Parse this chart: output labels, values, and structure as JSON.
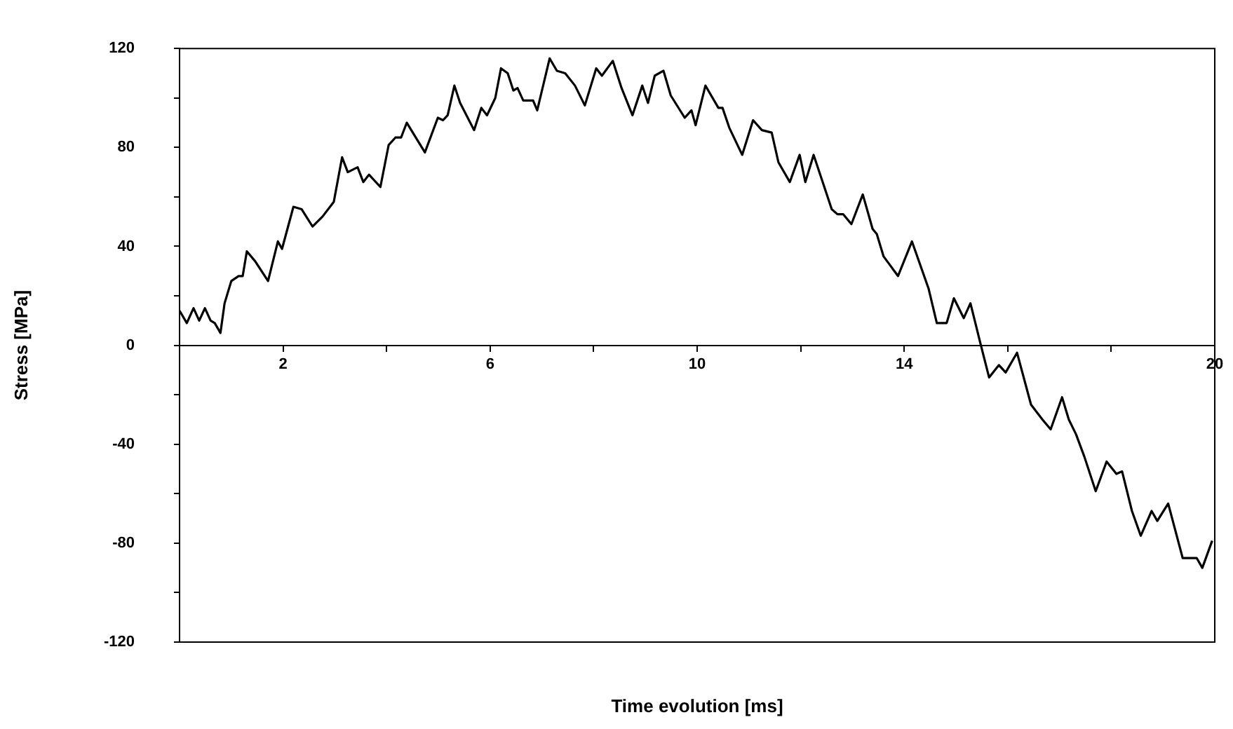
{
  "chart_data": {
    "type": "line",
    "xlabel": "Time evolution [ms]",
    "ylabel": "Stress [MPa]",
    "xlim": [
      0,
      20
    ],
    "ylim": [
      -120,
      120
    ],
    "xticks": [
      {
        "value": 0,
        "label": null
      },
      2,
      {
        "value": 4,
        "label": null
      },
      6,
      {
        "value": 8,
        "label": null
      },
      10,
      {
        "value": 12,
        "label": null
      },
      14,
      {
        "value": 16,
        "label": null
      },
      {
        "value": 18,
        "label": null
      },
      20
    ],
    "yticks": [
      -120,
      {
        "value": -100,
        "label": null
      },
      -80,
      {
        "value": -60,
        "label": null
      },
      -40,
      {
        "value": -20,
        "label": null
      },
      0,
      {
        "value": 20,
        "label": null
      },
      40,
      {
        "value": 60,
        "label": null
      },
      80,
      {
        "value": 100,
        "label": null
      },
      120
    ],
    "grid": false,
    "legend": false,
    "marker": "none",
    "line_style": "solid",
    "series": [
      {
        "color": "#000000",
        "x": [
          0,
          0.14,
          0.27,
          0.38,
          0.49,
          0.6,
          0.68,
          0.79,
          0.87,
          1.0,
          1.14,
          1.22,
          1.3,
          1.46,
          1.71,
          1.9,
          1.98,
          2.2,
          2.36,
          2.57,
          2.76,
          2.98,
          3.14,
          3.25,
          3.44,
          3.55,
          3.66,
          3.88,
          4.04,
          4.17,
          4.28,
          4.39,
          4.74,
          4.99,
          5.09,
          5.18,
          5.31,
          5.42,
          5.69,
          5.83,
          5.94,
          6.1,
          6.21,
          6.34,
          6.45,
          6.53,
          6.64,
          6.83,
          6.91,
          7.15,
          7.29,
          7.45,
          7.64,
          7.83,
          8.05,
          8.16,
          8.37,
          8.54,
          8.75,
          8.94,
          9.05,
          9.18,
          9.35,
          9.49,
          9.76,
          9.89,
          9.97,
          10.16,
          10.41,
          10.49,
          10.62,
          10.87,
          11.08,
          11.25,
          11.44,
          11.57,
          11.79,
          11.98,
          12.09,
          12.25,
          12.6,
          12.71,
          12.82,
          12.98,
          13.2,
          13.39,
          13.47,
          13.6,
          13.88,
          14.15,
          14.47,
          14.63,
          14.82,
          14.96,
          15.15,
          15.28,
          15.47,
          15.64,
          15.83,
          15.96,
          16.18,
          16.45,
          16.67,
          16.83,
          17.05,
          17.18,
          17.32,
          17.48,
          17.7,
          17.91,
          18.1,
          18.21,
          18.4,
          18.57,
          18.78,
          18.89,
          19.1,
          19.38,
          19.65,
          19.76,
          19.95
        ],
        "values": [
          14,
          9,
          15,
          10,
          15,
          10,
          9,
          5,
          17,
          26,
          28,
          28,
          38,
          34,
          26,
          42,
          39,
          56,
          55,
          48,
          52,
          58,
          76,
          70,
          72,
          66,
          69,
          64,
          81,
          84,
          84,
          90,
          78,
          92,
          91,
          93,
          105,
          98,
          87,
          96,
          93,
          100,
          112,
          110,
          103,
          104,
          99,
          99,
          95,
          116,
          111,
          110,
          105,
          97,
          112,
          109,
          115,
          104,
          93,
          105,
          98,
          109,
          111,
          101,
          92,
          95,
          89,
          105,
          96,
          96,
          88,
          77,
          91,
          87,
          86,
          74,
          66,
          77,
          66,
          77,
          55,
          53,
          53,
          49,
          61,
          47,
          45,
          36,
          28,
          42,
          23,
          9,
          9,
          19,
          11,
          17,
          1,
          -13,
          -8,
          -11,
          -3,
          -24,
          -30,
          -34,
          -21,
          -30,
          -36,
          -45,
          -59,
          -47,
          -52,
          -51,
          -67,
          -77,
          -67,
          -71,
          -64,
          -86,
          -86,
          -90,
          -79
        ]
      }
    ]
  }
}
